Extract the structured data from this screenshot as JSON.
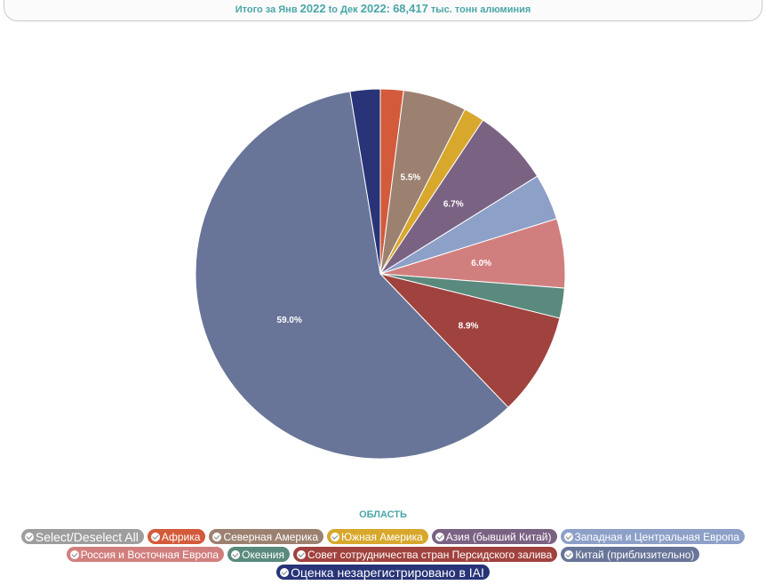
{
  "header": {
    "prefix": "Итого за Янв",
    "start_year": "2022",
    "mid": "to Дек",
    "end_year": "2022:",
    "total": "68,417",
    "unit": "тыс. тонн алюминия"
  },
  "legend": {
    "title": "ОБЛАСТЬ",
    "select_all_label": "Select/Deselect All",
    "select_all_color": "#9e9e9e"
  },
  "chart_data": {
    "type": "pie",
    "start_angle_deg": 0,
    "slices": [
      {
        "name": "Африка",
        "value": 2.0,
        "label": "",
        "color": "#d35a3a"
      },
      {
        "name": "Северная Америка",
        "value": 5.5,
        "label": "5.5%",
        "color": "#9c8171"
      },
      {
        "name": "Южная Америка",
        "value": 1.8,
        "label": "",
        "color": "#d8a82c"
      },
      {
        "name": "Азия (бывший Китай)",
        "value": 6.7,
        "label": "6.7%",
        "color": "#7a6283"
      },
      {
        "name": "Западная и Центральная Европа",
        "value": 4.0,
        "label": "",
        "color": "#8da0c8"
      },
      {
        "name": "Россия и Восточная Европа",
        "value": 6.0,
        "label": "6.0%",
        "color": "#d17f7e"
      },
      {
        "name": "Океания",
        "value": 2.6,
        "label": "",
        "color": "#5a8a7d"
      },
      {
        "name": "Совет сотрудничества стран Персидского залива",
        "value": 8.9,
        "label": "8.9%",
        "color": "#a0423e"
      },
      {
        "name": "Китай (приблизительно)",
        "value": 59.0,
        "label": "59.0%",
        "color": "#687598"
      },
      {
        "name": "Оценка незарегистрировано в IAI",
        "value": 2.6,
        "label": "",
        "color": "#283477"
      }
    ]
  }
}
